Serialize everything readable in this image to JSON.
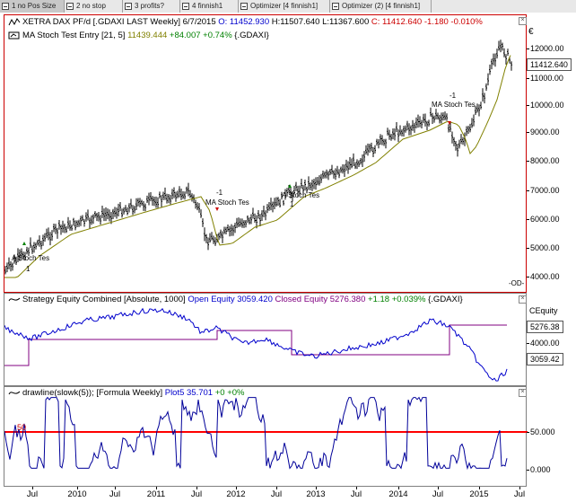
{
  "tabs": [
    {
      "label": "1 no Pos Size",
      "active": true
    },
    {
      "label": "2 no stop",
      "active": false
    },
    {
      "label": "3 profits?",
      "active": false
    },
    {
      "label": "4 finnish1",
      "active": false
    },
    {
      "label": "Optimizer [4 finnish1]",
      "active": false
    },
    {
      "label": "Optimizer (2) [4 finnish1]",
      "active": false
    }
  ],
  "price_pane": {
    "legend1_name": "XETRA DAX PF/d [.GDAXI LAST Weekly]",
    "legend1_date": "6/7/2015",
    "legend1_o": "O: 11452.930",
    "legend1_h": "H:11507.640",
    "legend1_l": "L:11367.600",
    "legend1_c": "C: 11412.640",
    "legend1_chg": "-1.180 -0.010%",
    "legend2_name": "MA Stoch Test Entry [21, 5]",
    "legend2_val": "11439.444",
    "legend2_chg": "+84.007 +0.74%",
    "legend2_sym": "{.GDAXI}",
    "currency": "€",
    "last_price": "11412.640",
    "ticks": [
      "12000.00",
      "11000.00",
      "10000.00",
      "9000.00",
      "8000.00",
      "7000.00",
      "6000.00",
      "5000.00",
      "4000.00"
    ],
    "marker_tag": "-OD-",
    "trades": [
      {
        "label": "A Stoch Tes",
        "qty": "1"
      },
      {
        "label": "MA Stoch Tes",
        "qty": "-1"
      },
      {
        "label": "A Stoch Tes",
        "qty": "1"
      },
      {
        "label": "MA Stoch Tes",
        "qty": "-1"
      }
    ]
  },
  "equity_pane": {
    "legend_name": "Strategy Equity Combined [Absolute, 1000]",
    "legend_open": "Open Equity 3059.420",
    "legend_closed": "Closed Equity 5276.380",
    "legend_chg": "+1.18 +0.039%",
    "legend_sym": "{.GDAXI}",
    "axis_title": "CEquity",
    "val_closed": "5276.38",
    "val_open": "3059.42",
    "ticks": [
      "4000.00"
    ]
  },
  "osc_pane": {
    "legend_name": "drawline(slowk(5)); [Formula Weekly]",
    "legend_plot": "Plot5 35.701",
    "legend_chg": "+0 +0%",
    "level_label": "50",
    "ticks": [
      "50.000",
      "0.000"
    ]
  },
  "xaxis": [
    "Jul",
    "2010",
    "Jul",
    "2011",
    "Jul",
    "2012",
    "Jul",
    "2013",
    "Jul",
    "2014",
    "Jul",
    "2015",
    "Jul"
  ],
  "colors": {
    "candle": "#000000",
    "ma": "#808000",
    "open_equity": "#0000cc",
    "closed_equity": "#800080",
    "level": "#ff0000",
    "stoch": "#000099"
  }
}
